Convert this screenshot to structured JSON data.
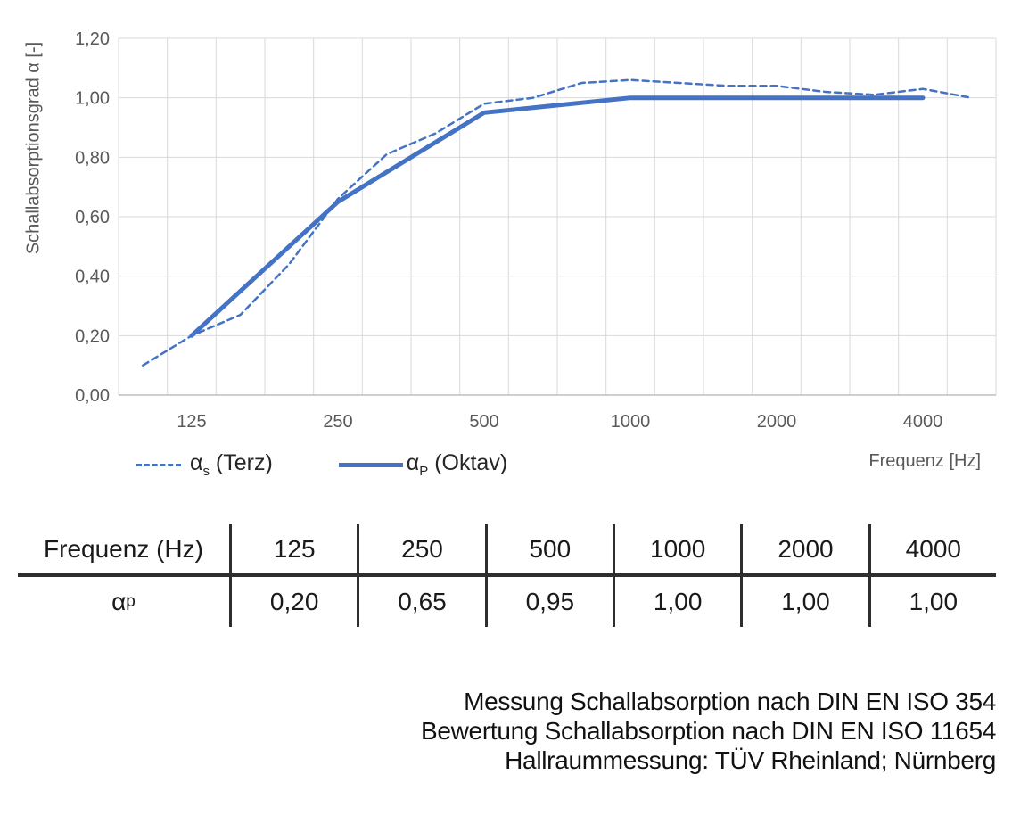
{
  "chart_data": {
    "type": "line",
    "title": "",
    "ylabel": "Schallabsorptionsgrad α [-]",
    "xlabel": "Frequenz [Hz]",
    "ylim": [
      0,
      1.2
    ],
    "grid": true,
    "legend_position": "bottom-left",
    "y_ticks": {
      "values": [
        0,
        0.2,
        0.4,
        0.6,
        0.8,
        1.0,
        1.2
      ],
      "labels": [
        "0,00",
        "0,20",
        "0,40",
        "0,60",
        "0,80",
        "1,00",
        "1,20"
      ]
    },
    "x_axis": {
      "scale": "third-octave-bands",
      "band_frequencies": [
        100,
        125,
        160,
        200,
        250,
        315,
        400,
        500,
        630,
        800,
        1000,
        1250,
        1600,
        2000,
        2500,
        3150,
        4000,
        5000
      ],
      "labeled_frequencies": [
        125,
        250,
        500,
        1000,
        2000,
        4000
      ],
      "tick_labels": [
        "125",
        "250",
        "500",
        "1000",
        "2000",
        "4000"
      ]
    },
    "series": [
      {
        "name": "αs (Terz)",
        "style": "dashed",
        "color": "#4472C4",
        "x": [
          100,
          125,
          160,
          200,
          250,
          315,
          400,
          500,
          630,
          800,
          1000,
          1250,
          1600,
          2000,
          2500,
          3150,
          4000,
          5000
        ],
        "values": [
          0.1,
          0.2,
          0.27,
          0.44,
          0.66,
          0.81,
          0.88,
          0.98,
          1.0,
          1.05,
          1.06,
          1.05,
          1.04,
          1.04,
          1.02,
          1.01,
          1.03,
          1.0
        ]
      },
      {
        "name": "αP (Oktav)",
        "style": "solid",
        "color": "#4472C4",
        "x": [
          125,
          250,
          500,
          1000,
          2000,
          4000
        ],
        "values": [
          0.2,
          0.65,
          0.95,
          1.0,
          1.0,
          1.0
        ]
      }
    ]
  },
  "legend": {
    "items": [
      {
        "alpha": "α",
        "sub": "s",
        "rest": " (Terz)"
      },
      {
        "alpha": "α",
        "sub": "P",
        "rest": " (Oktav)"
      }
    ]
  },
  "table": {
    "header_label": "Frequenz (Hz)",
    "row_alpha": "α",
    "row_sub": "p",
    "frequencies": [
      "125",
      "250",
      "500",
      "1000",
      "2000",
      "4000"
    ],
    "values": [
      "0,20",
      "0,65",
      "0,95",
      "1,00",
      "1,00",
      "1,00"
    ]
  },
  "footer": {
    "lines": [
      "Messung Schallabsorption nach DIN EN ISO 354",
      "Bewertung Schallabsorption nach DIN EN ISO 11654",
      "Hallraummessung: TÜV Rheinland; Nürnberg"
    ]
  }
}
